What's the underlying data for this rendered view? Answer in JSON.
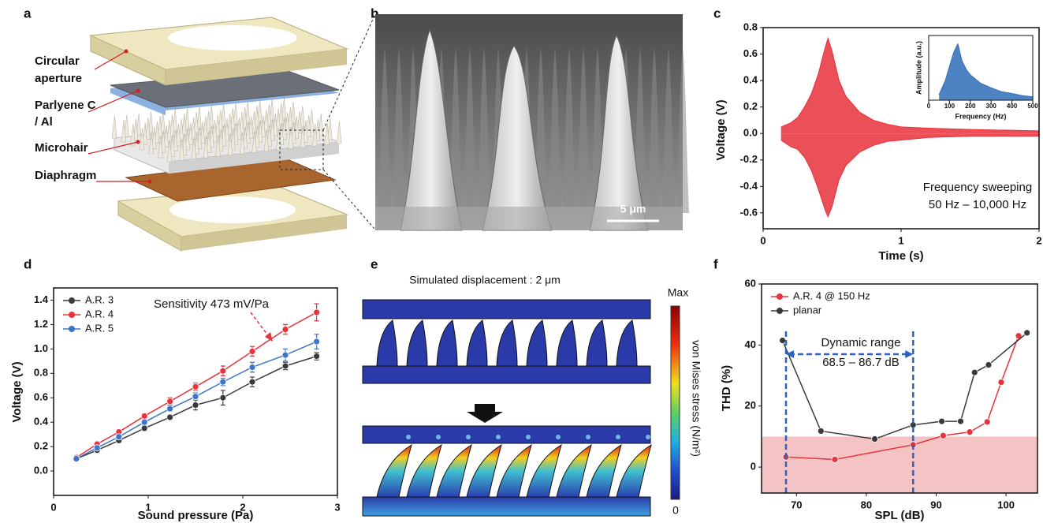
{
  "panel_letters": [
    "a",
    "b",
    "c",
    "d",
    "e",
    "f"
  ],
  "diagram_a": {
    "labels": [
      "Circular",
      "aperture",
      "Parlyene C",
      "/ Al",
      "Microhair",
      "Diaphragm"
    ]
  },
  "image_b": {
    "scale_bar": "5 μm"
  },
  "simulation_e": {
    "title": "Simulated displacement : 2 μm",
    "colorbar_max": "Max",
    "colorbar_min": "0",
    "colorbar_label": "von Mises stress (N/m²)"
  },
  "chart_data": [
    {
      "type": "area",
      "xlabel": "Time (s)",
      "ylabel": "Voltage (V)",
      "x": [
        0.13,
        0.2,
        0.25,
        0.3,
        0.35,
        0.4,
        0.45,
        0.47,
        0.5,
        0.55,
        0.6,
        0.7,
        0.8,
        0.9,
        1.0,
        1.2,
        1.5,
        2.0
      ],
      "series": [
        {
          "color": "#e8303a",
          "values": [
            0.05,
            0.08,
            0.12,
            0.2,
            0.3,
            0.45,
            0.65,
            0.72,
            0.62,
            0.4,
            0.28,
            0.16,
            0.1,
            0.07,
            0.05,
            0.04,
            0.03,
            0.02
          ]
        },
        {
          "color": "#e8303a",
          "values": [
            -0.05,
            -0.1,
            -0.12,
            -0.18,
            -0.28,
            -0.42,
            -0.58,
            -0.63,
            -0.55,
            -0.35,
            -0.24,
            -0.14,
            -0.09,
            -0.06,
            -0.05,
            -0.03,
            -0.02,
            -0.02
          ]
        }
      ],
      "xlim": [
        0,
        2
      ],
      "xticks": [
        0,
        1,
        2
      ],
      "ylim": [
        -0.72,
        0.8
      ],
      "yticks": [
        -0.6,
        -0.4,
        -0.2,
        {
          "value": 0,
          "label": "0.0"
        },
        0.2,
        0.4,
        0.6,
        0.8
      ],
      "annotations": [
        "Frequency sweeping",
        "50 Hz – 10,000 Hz"
      ]
    },
    {
      "type": "area",
      "xlabel": "Frequency (Hz)",
      "ylabel": "Amplitude (a.u.)",
      "x": [
        50,
        80,
        100,
        120,
        140,
        160,
        180,
        200,
        250,
        300,
        350,
        400,
        450,
        500
      ],
      "series": [
        {
          "color": "#2f6db8",
          "values": [
            0.1,
            0.35,
            0.6,
            0.85,
            1.0,
            0.7,
            0.55,
            0.45,
            0.3,
            0.22,
            0.15,
            0.12,
            0.08,
            0.06
          ]
        }
      ],
      "xlim": [
        0,
        500
      ],
      "xticks": [
        0,
        100,
        200,
        300,
        400,
        500
      ],
      "ylim": [
        0,
        1.15
      ]
    },
    {
      "type": "line",
      "xlabel": "Sound pressure (Pa)",
      "ylabel": "Voltage (V)",
      "legend": "upper left",
      "x": [
        0.24,
        0.46,
        0.69,
        0.96,
        1.23,
        1.5,
        1.79,
        2.1,
        2.45,
        2.78
      ],
      "series": [
        {
          "name": "A.R. 3",
          "color": "#3a3a3a",
          "values": [
            0.1,
            0.17,
            0.25,
            0.35,
            0.44,
            0.54,
            0.6,
            0.73,
            0.86,
            0.94
          ],
          "errors": [
            0.01,
            0.02,
            0.02,
            0.02,
            0.02,
            0.04,
            0.06,
            0.04,
            0.03,
            0.03
          ]
        },
        {
          "name": "A.R. 4",
          "color": "#e8333c",
          "values": [
            0.11,
            0.22,
            0.32,
            0.45,
            0.57,
            0.69,
            0.82,
            0.98,
            1.16,
            1.3
          ],
          "errors": [
            0.01,
            0.02,
            0.02,
            0.02,
            0.03,
            0.03,
            0.04,
            0.04,
            0.04,
            0.07
          ]
        },
        {
          "name": "A.R. 5",
          "color": "#3d74c9",
          "values": [
            0.1,
            0.19,
            0.28,
            0.4,
            0.51,
            0.61,
            0.73,
            0.85,
            0.95,
            1.06
          ],
          "errors": [
            0.01,
            0.02,
            0.02,
            0.02,
            0.02,
            0.03,
            0.03,
            0.04,
            0.05,
            0.06
          ]
        }
      ],
      "xlim": [
        0,
        3
      ],
      "xticks": [
        0,
        1,
        2,
        3
      ],
      "ylim": [
        -0.2,
        1.5
      ],
      "yticks": [
        {
          "value": 0,
          "label": "0.0"
        },
        0.2,
        0.4,
        0.6,
        0.8,
        {
          "value": 1,
          "label": "1.0"
        },
        1.2,
        1.4
      ],
      "annotations": [
        "Sensitivity 473 mV/Pa"
      ]
    },
    {
      "type": "line",
      "xlabel": "SPL (dB)",
      "ylabel": "THD (%)",
      "legend": "upper left",
      "series": [
        {
          "name": "A.R. 4 @ 150 Hz",
          "color": "#e8333c",
          "x": [
            68.5,
            75.5,
            86.7,
            91,
            94.8,
            97.3,
            99.3,
            101.8
          ],
          "values": [
            3.3,
            2.5,
            7.3,
            10.3,
            11.5,
            14.8,
            27.8,
            43
          ]
        },
        {
          "name": "planar",
          "color": "#3a3a3a",
          "x": [
            68,
            73.5,
            81.2,
            86.7,
            90.8,
            93.5,
            95.5,
            97.5,
            103
          ],
          "values": [
            41.5,
            11.8,
            9.2,
            13.8,
            15,
            15,
            31,
            33.5,
            44
          ]
        }
      ],
      "xlim": [
        65,
        104.5
      ],
      "xticks": [
        70,
        80,
        90,
        100
      ],
      "ylim": [
        -8.5,
        60
      ],
      "yticks": [
        0,
        20,
        40,
        60
      ],
      "shade_below": 10,
      "shade_color": "#f4c4c4",
      "range_markers": [
        68.5,
        86.7
      ],
      "marker_color": "#2f62c0",
      "annotations": [
        "Dynamic range",
        "68.5 – 86.7 dB"
      ]
    }
  ]
}
